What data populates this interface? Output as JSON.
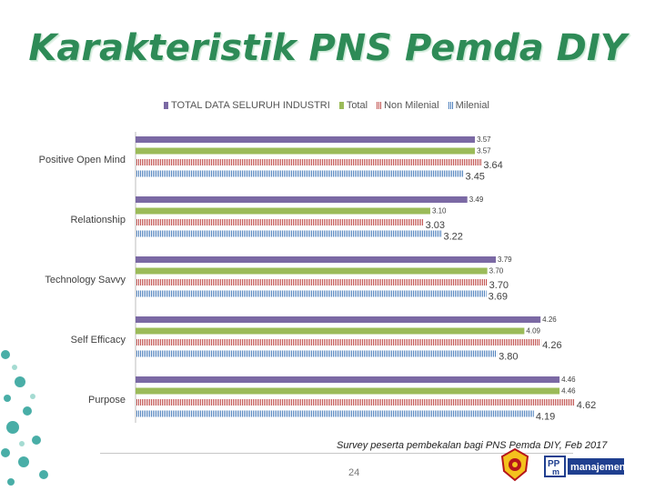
{
  "title": "Karakteristik PNS Pemda DIY",
  "source_note": "Survey peserta pembekalan bagi PNS Pemda DIY, Feb 2017",
  "page_number": "24",
  "logos": {
    "ppm_label": "manajemen"
  },
  "colors": {
    "total_data": "#7b69a4",
    "total": "#9bbb59",
    "non_milenial": "#c0504d",
    "milenial": "#4f81bd",
    "title": "#2e8b57",
    "decoration": "#2aa198"
  },
  "chart_data": {
    "type": "bar",
    "orientation": "horizontal",
    "categories": [
      "Positive Open Mind",
      "Relationship",
      "Technology Savvy",
      "Self Efficacy",
      "Purpose"
    ],
    "series": [
      {
        "name": "TOTAL DATA SELURUH INDUSTRI",
        "values": [
          3.57,
          3.49,
          3.79,
          4.26,
          4.46
        ],
        "labels": [
          "3.57",
          "3.49",
          "3.79",
          "4.26",
          "4.46"
        ]
      },
      {
        "name": "Total",
        "values": [
          3.57,
          3.1,
          3.7,
          4.09,
          4.46
        ],
        "labels": [
          "3.57",
          "3.10",
          "3.70",
          "4.09",
          "4.46"
        ]
      },
      {
        "name": "Non Milenial",
        "values": [
          3.64,
          3.03,
          3.7,
          4.26,
          4.62
        ],
        "labels": [
          "3.64",
          "3.03",
          "3.70",
          "4.26",
          "4.62"
        ]
      },
      {
        "name": "Milenial",
        "values": [
          3.45,
          3.22,
          3.69,
          3.8,
          4.19
        ],
        "labels": [
          "3.45",
          "3.22",
          "3.69",
          "3.80",
          "4.19"
        ]
      }
    ],
    "legend_position": "top",
    "grid": false
  }
}
